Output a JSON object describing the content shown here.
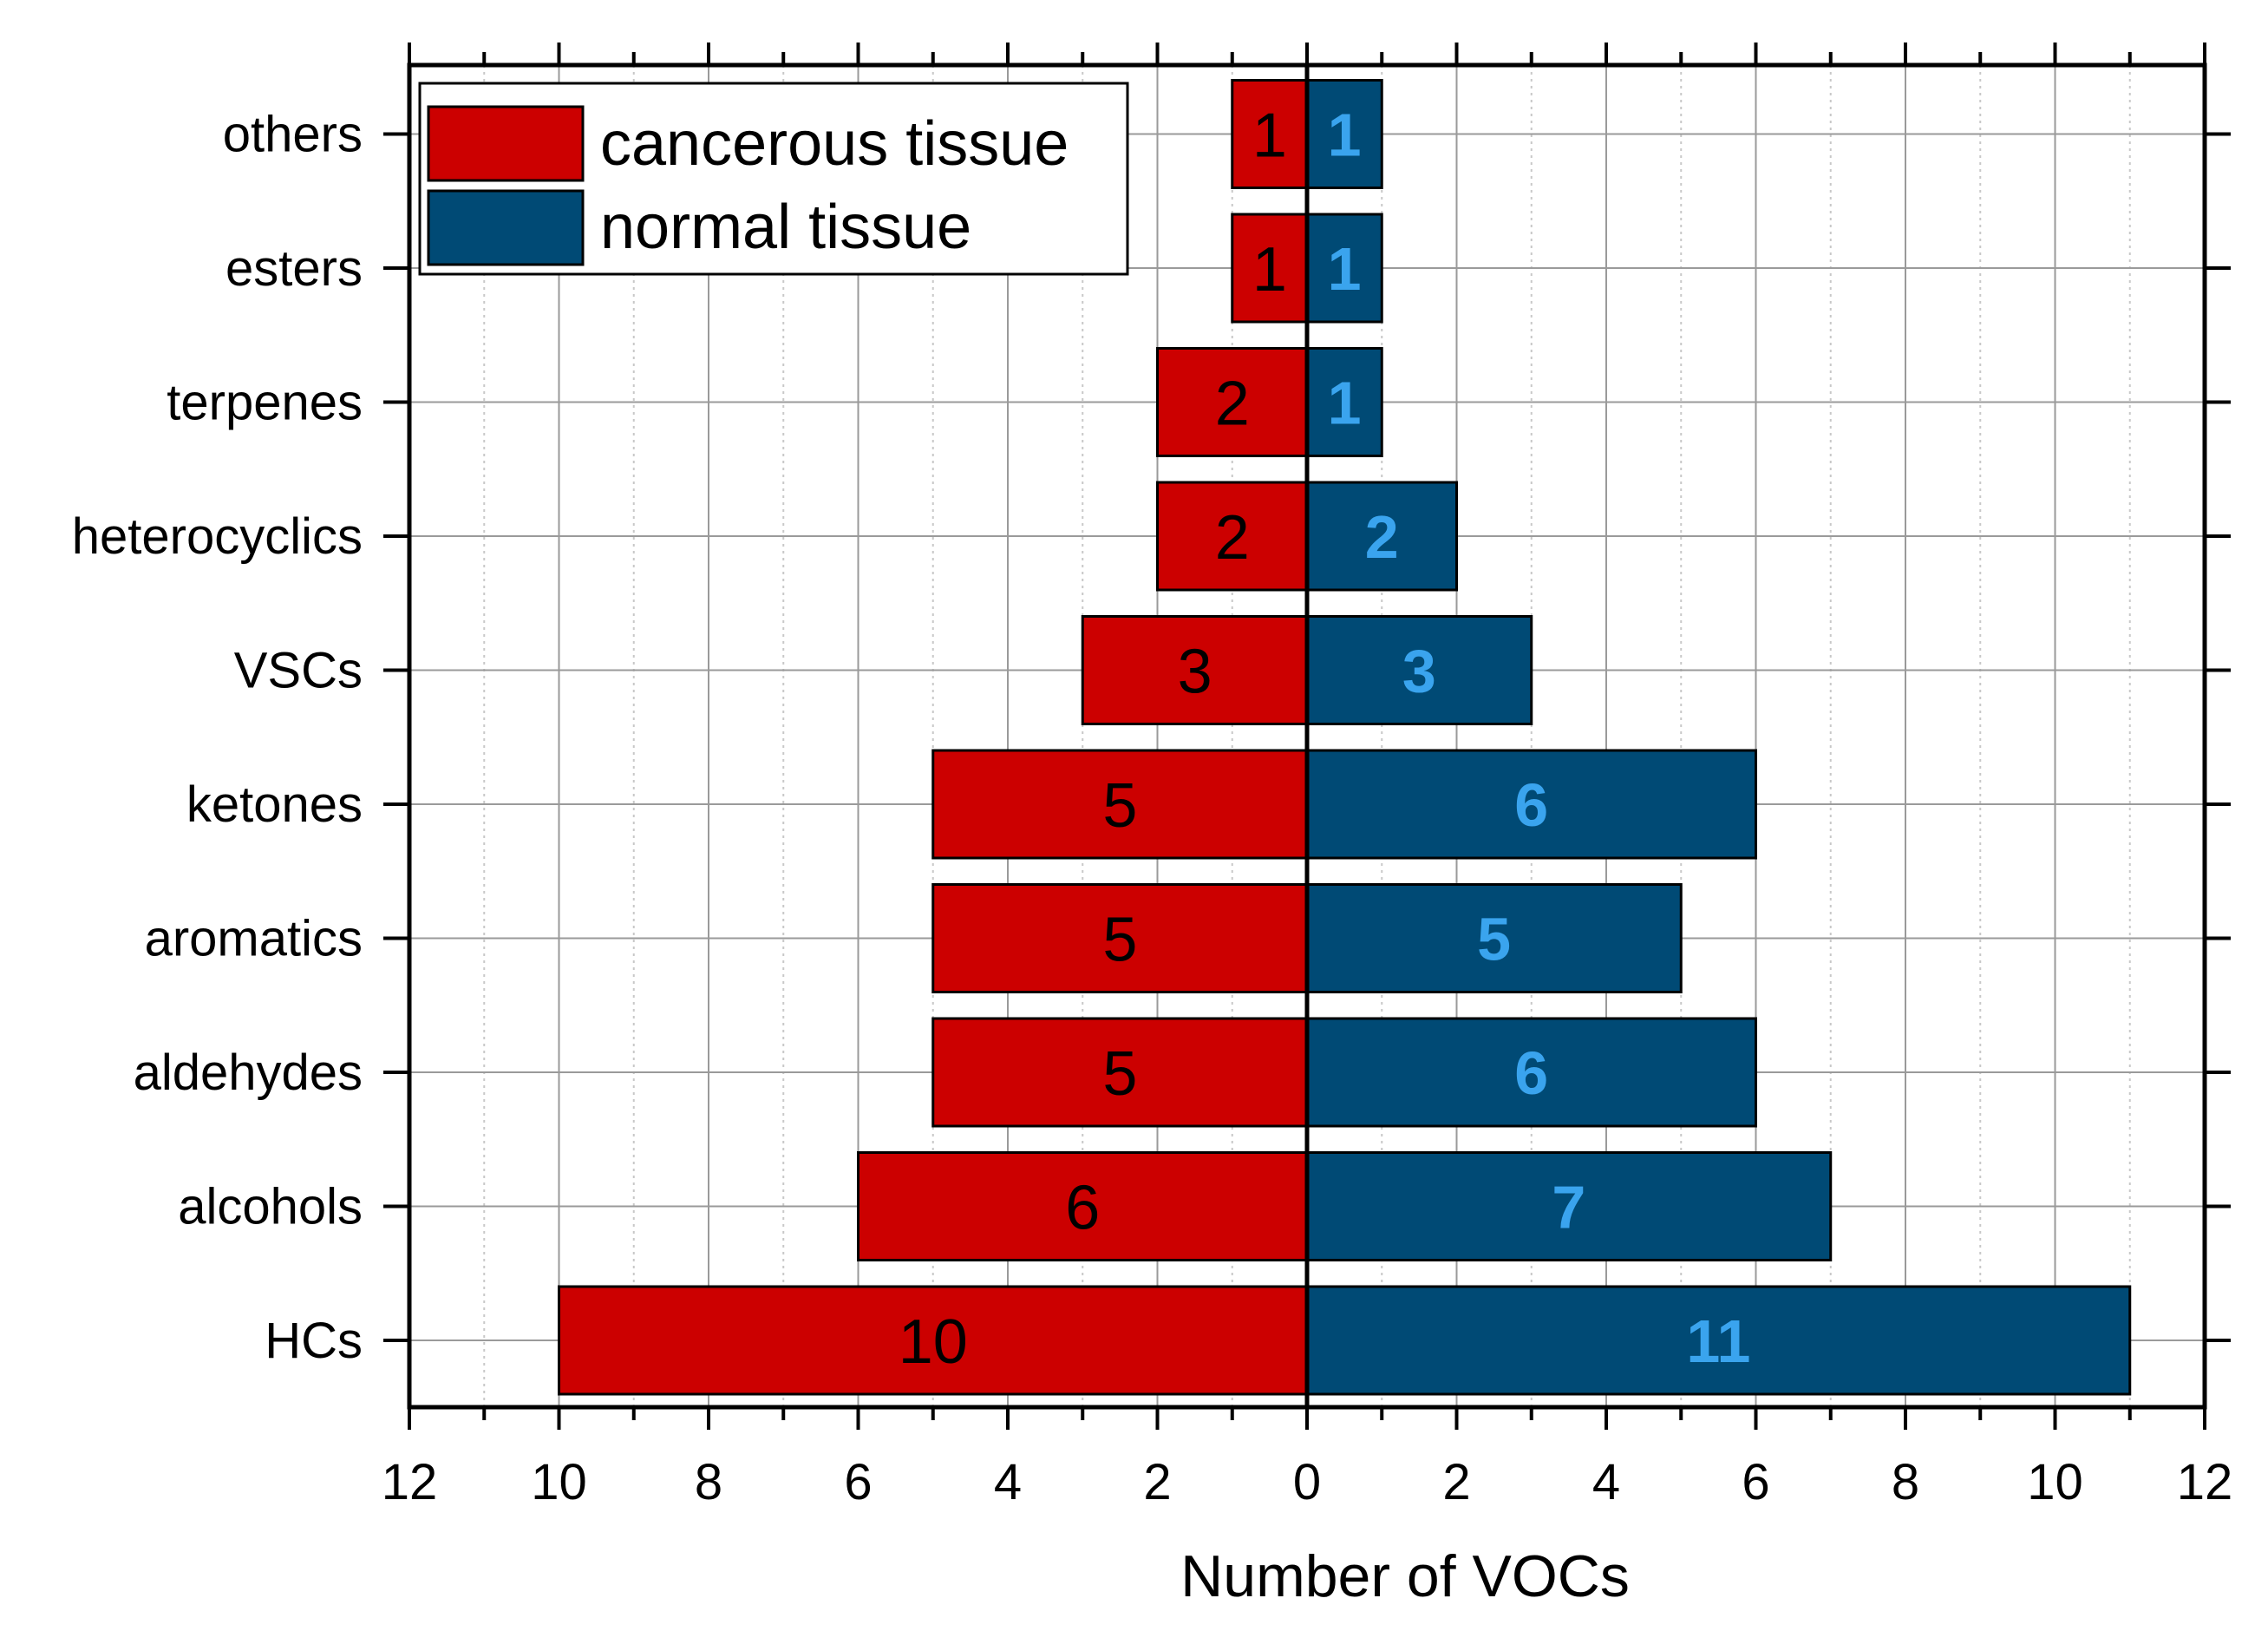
{
  "chart_data": {
    "type": "bar",
    "orientation": "horizontal-butterfly",
    "categories": [
      "HCs",
      "alcohols",
      "aldehydes",
      "aromatics",
      "ketones",
      "VSCs",
      "heterocyclics",
      "terpenes",
      "esters",
      "others"
    ],
    "series": [
      {
        "name": "cancerous tissue",
        "side": "left",
        "color": "#cc0000",
        "values": [
          10,
          6,
          5,
          5,
          5,
          3,
          2,
          2,
          1,
          1
        ]
      },
      {
        "name": "normal tissue",
        "side": "right",
        "color": "#004a75",
        "label_color": "#3aa4ee",
        "values": [
          11,
          7,
          6,
          5,
          6,
          3,
          2,
          1,
          1,
          1
        ]
      }
    ],
    "xlabel": "Number of VOCs",
    "ylabel": "",
    "xlim": [
      -12,
      12
    ],
    "x_ticks": [
      12,
      10,
      8,
      6,
      4,
      2,
      0,
      2,
      4,
      6,
      8,
      10,
      12
    ],
    "grid": true,
    "legend": "top-left"
  }
}
